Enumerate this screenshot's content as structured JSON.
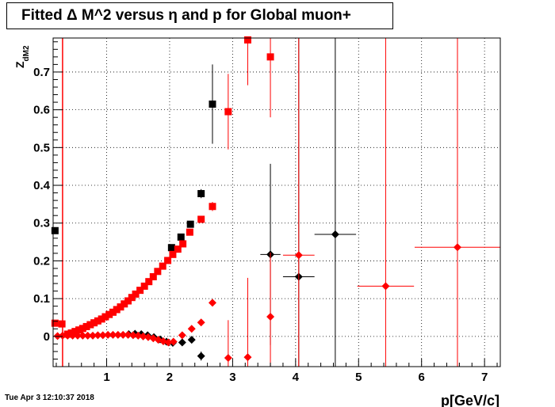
{
  "title": "Fitted Δ M^2 versus η and p for Global muon+",
  "timestamp": "Tue Apr  3 12:10:37 2018",
  "chart_data": {
    "type": "scatter",
    "title": "Fitted Δ M^2 versus η and p for Global muon+",
    "xlabel": "p[GeV/c]",
    "ylabel": "Z",
    "ylabel_sub": "dM2",
    "xlim": [
      0.15,
      7.25
    ],
    "ylim": [
      -0.08,
      0.79
    ],
    "xticks": [
      1,
      2,
      3,
      4,
      5,
      6,
      7
    ],
    "yticks": [
      0,
      0.1,
      0.2,
      0.3,
      0.4,
      0.5,
      0.6,
      0.7
    ],
    "grid": true,
    "series": [
      {
        "marker": "square",
        "color": "#000000",
        "points": [
          {
            "x": 0.18,
            "y": 0.28
          },
          {
            "x": 2.03,
            "y": 0.235
          },
          {
            "x": 2.18,
            "y": 0.263
          },
          {
            "x": 2.33,
            "y": 0.297
          },
          {
            "x": 2.5,
            "y": 0.378,
            "yerr": 0.012
          },
          {
            "x": 2.68,
            "y": 0.615,
            "yerr": 0.105
          }
        ]
      },
      {
        "marker": "square",
        "color": "#ff0000",
        "points": [
          {
            "x": 0.18,
            "y": 0.035
          },
          {
            "x": 0.29,
            "y": 0.033
          },
          {
            "x": 0.38,
            "y": 0.006
          },
          {
            "x": 0.44,
            "y": 0.009
          },
          {
            "x": 0.5,
            "y": 0.013
          },
          {
            "x": 0.56,
            "y": 0.017
          },
          {
            "x": 0.62,
            "y": 0.021
          },
          {
            "x": 0.68,
            "y": 0.026
          },
          {
            "x": 0.74,
            "y": 0.031
          },
          {
            "x": 0.8,
            "y": 0.036
          },
          {
            "x": 0.86,
            "y": 0.041
          },
          {
            "x": 0.92,
            "y": 0.046
          },
          {
            "x": 0.98,
            "y": 0.052
          },
          {
            "x": 1.04,
            "y": 0.058
          },
          {
            "x": 1.1,
            "y": 0.064
          },
          {
            "x": 1.16,
            "y": 0.071
          },
          {
            "x": 1.22,
            "y": 0.078
          },
          {
            "x": 1.28,
            "y": 0.086
          },
          {
            "x": 1.34,
            "y": 0.094
          },
          {
            "x": 1.4,
            "y": 0.103
          },
          {
            "x": 1.46,
            "y": 0.112
          },
          {
            "x": 1.53,
            "y": 0.122
          },
          {
            "x": 1.6,
            "y": 0.133
          },
          {
            "x": 1.67,
            "y": 0.145
          },
          {
            "x": 1.74,
            "y": 0.158
          },
          {
            "x": 1.81,
            "y": 0.172
          },
          {
            "x": 1.89,
            "y": 0.186
          },
          {
            "x": 1.97,
            "y": 0.201
          },
          {
            "x": 2.05,
            "y": 0.217
          },
          {
            "x": 2.13,
            "y": 0.231
          },
          {
            "x": 2.21,
            "y": 0.245
          },
          {
            "x": 2.32,
            "y": 0.276
          },
          {
            "x": 2.5,
            "y": 0.31
          },
          {
            "x": 2.68,
            "y": 0.344,
            "yerr": 0.012
          },
          {
            "x": 2.93,
            "y": 0.595,
            "yerr": 0.1
          },
          {
            "x": 3.24,
            "y": 0.785,
            "yerr": 0.12
          },
          {
            "x": 3.6,
            "y": 0.74,
            "yerr": 0.16,
            "xerr": 0.05
          }
        ]
      },
      {
        "marker": "diamond",
        "color": "#000000",
        "points": [
          {
            "x": 1.35,
            "y": 0.006
          },
          {
            "x": 1.45,
            "y": 0.007
          },
          {
            "x": 1.55,
            "y": 0.006
          },
          {
            "x": 1.65,
            "y": 0.003
          },
          {
            "x": 1.75,
            "y": -0.002
          },
          {
            "x": 1.85,
            "y": -0.008
          },
          {
            "x": 1.95,
            "y": -0.014
          },
          {
            "x": 2.05,
            "y": -0.017
          },
          {
            "x": 2.2,
            "y": -0.016
          },
          {
            "x": 2.35,
            "y": -0.009
          },
          {
            "x": 2.5,
            "y": -0.052,
            "yerr": 0.012
          },
          {
            "x": 3.6,
            "y": 0.217,
            "xerr": 0.16,
            "yerr": 0.24
          },
          {
            "x": 4.05,
            "y": 0.158,
            "xerr": 0.25,
            "yerr": 0.7
          },
          {
            "x": 4.63,
            "y": 0.27,
            "xerr": 0.33,
            "yerr": 0.6
          }
        ]
      },
      {
        "marker": "diamond",
        "color": "#ff0000",
        "points": [
          {
            "x": 0.22,
            "y": 0.001
          },
          {
            "x": 0.3,
            "y": 0.002
          },
          {
            "x": 0.38,
            "y": 0.002
          },
          {
            "x": 0.46,
            "y": 0.002
          },
          {
            "x": 0.54,
            "y": 0.002
          },
          {
            "x": 0.62,
            "y": 0.002
          },
          {
            "x": 0.7,
            "y": 0.002
          },
          {
            "x": 0.78,
            "y": 0.002
          },
          {
            "x": 0.86,
            "y": 0.003
          },
          {
            "x": 0.94,
            "y": 0.003
          },
          {
            "x": 1.02,
            "y": 0.004
          },
          {
            "x": 1.1,
            "y": 0.004
          },
          {
            "x": 1.18,
            "y": 0.004
          },
          {
            "x": 1.26,
            "y": 0.004
          },
          {
            "x": 1.34,
            "y": 0.004
          },
          {
            "x": 1.42,
            "y": 0.003
          },
          {
            "x": 1.5,
            "y": 0.002
          },
          {
            "x": 1.58,
            "y": 0.0
          },
          {
            "x": 1.66,
            "y": -0.002
          },
          {
            "x": 1.74,
            "y": -0.005
          },
          {
            "x": 1.82,
            "y": -0.009
          },
          {
            "x": 1.9,
            "y": -0.013
          },
          {
            "x": 1.98,
            "y": -0.016
          },
          {
            "x": 2.06,
            "y": -0.014
          },
          {
            "x": 2.2,
            "y": 0.003
          },
          {
            "x": 2.35,
            "y": 0.02
          },
          {
            "x": 2.5,
            "y": 0.037
          },
          {
            "x": 2.68,
            "y": 0.089
          },
          {
            "x": 2.93,
            "y": -0.057,
            "yerr": 0.1
          },
          {
            "x": 3.24,
            "y": -0.055,
            "yerr": 0.21
          },
          {
            "x": 3.6,
            "y": 0.052,
            "yerr": 0.17
          },
          {
            "x": 4.05,
            "y": 0.215,
            "xerr": 0.25,
            "yerr": 0.58
          },
          {
            "x": 5.43,
            "y": 0.133,
            "xerr": 0.45,
            "yerr": 0.67
          },
          {
            "x": 6.57,
            "y": 0.236,
            "xerr": 0.68,
            "yerr": 0.56
          }
        ]
      }
    ],
    "extra_lines": [
      {
        "type": "vertical",
        "x": 0.3,
        "color": "#ff0000"
      }
    ]
  }
}
